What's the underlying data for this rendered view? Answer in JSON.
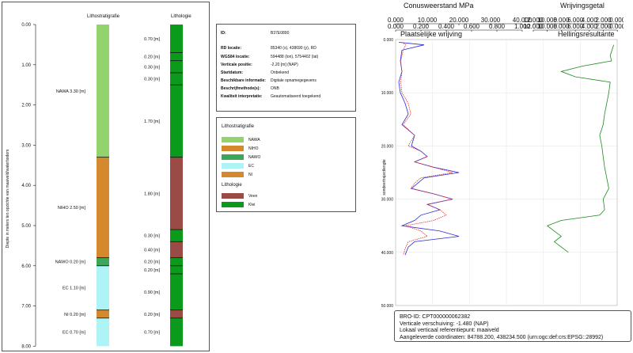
{
  "left_panel": {
    "col_litho_strat": "Lithostratigrafie",
    "col_lithologie": "Lithologie",
    "y_axis_label": "Diepte in meters ten opzichte van maaiveld/waterbodem",
    "depth_ticks": [
      "0.00",
      "1.00",
      "2.00",
      "3.00",
      "4.00",
      "5.00",
      "6.00",
      "7.00",
      "8.00"
    ],
    "strat_units": [
      {
        "label": "NAWA 3.30 [m]",
        "top": 0.0,
        "bottom": 3.3,
        "color": "#92d36e"
      },
      {
        "label": "NIHO 2.50 [m]",
        "top": 3.3,
        "bottom": 5.8,
        "color": "#d4892f"
      },
      {
        "label": "NAWO 0.20 [m]",
        "top": 5.8,
        "bottom": 6.0,
        "color": "#3da65a"
      },
      {
        "label": "EC 1.10 [m]",
        "top": 6.0,
        "bottom": 7.1,
        "color": "#aef3f5"
      },
      {
        "label": "NI 0.20 [m]",
        "top": 7.1,
        "bottom": 7.3,
        "color": "#d4892f"
      },
      {
        "label": "EC 0.70 [m]",
        "top": 7.3,
        "bottom": 8.0,
        "color": "#aef3f5"
      }
    ],
    "litho_units": [
      {
        "label": "0.70 [m]",
        "top": 0.0,
        "bottom": 0.7,
        "color": "#0c9a1d"
      },
      {
        "label": "0.20 [m]",
        "top": 0.7,
        "bottom": 0.9,
        "color": "#0c9a1d"
      },
      {
        "label": "0.30 [m]",
        "top": 0.9,
        "bottom": 1.2,
        "color": "#0c9a1d"
      },
      {
        "label": "0.30 [m]",
        "top": 1.2,
        "bottom": 1.5,
        "color": "#0c9a1d"
      },
      {
        "label": "1.70 [m]",
        "top": 1.5,
        "bottom": 3.3,
        "color": "#0c9a1d"
      },
      {
        "label": "1.80 [m]",
        "top": 3.3,
        "bottom": 5.1,
        "color": "#9a4b45"
      },
      {
        "label": "0.30 [m]",
        "top": 5.1,
        "bottom": 5.4,
        "color": "#0c9a1d"
      },
      {
        "label": "0.40 [m]",
        "top": 5.4,
        "bottom": 5.8,
        "color": "#9a4b45"
      },
      {
        "label": "0.20 [m]",
        "top": 5.8,
        "bottom": 6.0,
        "color": "#0c9a1d"
      },
      {
        "label": "0.20 [m]",
        "top": 6.0,
        "bottom": 6.2,
        "color": "#0c9a1d"
      },
      {
        "label": "0.90 [m]",
        "top": 6.2,
        "bottom": 7.1,
        "color": "#0c9a1d"
      },
      {
        "label": "0.20 [m]",
        "top": 7.1,
        "bottom": 7.3,
        "color": "#9a4b45"
      },
      {
        "label": "0.70 [m]",
        "top": 7.3,
        "bottom": 8.0,
        "color": "#0c9a1d"
      }
    ]
  },
  "info": {
    "rows": [
      {
        "key": "ID:",
        "value": "B37E0890"
      },
      {
        "key": "RD locatie:",
        "value": "85340 (x), 438690 (y), RD"
      },
      {
        "key": "WGS84 locatie:",
        "value": "594488 (lon), 5754402 (lat)"
      },
      {
        "key": "Verticale positie:",
        "value": "-2.20 [m] (NAP)"
      },
      {
        "key": "Startdatum:",
        "value": "Onbekend"
      },
      {
        "key": "Beschikbare informatie:",
        "value": "Digitale opnamegegevens"
      },
      {
        "key": "Beschrijfmethode(s):",
        "value": "ONB"
      },
      {
        "key": "Kwaliteit interpretatie:",
        "value": "Geautomatiseerd toegekend"
      }
    ]
  },
  "legend": {
    "strat_title": "Lithostratigrafie",
    "strat_items": [
      {
        "label": "NAWA",
        "color": "#92d36e"
      },
      {
        "label": "NIHO",
        "color": "#d4892f"
      },
      {
        "label": "NAWO",
        "color": "#3da65a"
      },
      {
        "label": "EC",
        "color": "#aef3f5"
      },
      {
        "label": "NI",
        "color": "#d4892f"
      }
    ],
    "litho_title": "Lithologie",
    "litho_items": [
      {
        "label": "Veen",
        "color": "#9a4b45"
      },
      {
        "label": "Klei",
        "color": "#0c9a1d"
      }
    ]
  },
  "cpt": {
    "title_cone": "Conusweerstand MPa",
    "title_friction_ratio": "Wrijvingsgetal",
    "title_sleeve": "Plaatselijke wrijving",
    "title_incl": "Hellingsresultante",
    "cone_ticks": [
      "0.000",
      "10.000",
      "20.000",
      "30.000",
      "40.000"
    ],
    "fs_ticks": [
      "0.000",
      "0.200",
      "0.400",
      "0.600",
      "0.800",
      "1.000"
    ],
    "rf_ticks": [
      "12.000",
      "10.000",
      "8.000",
      "6.000",
      "4.000",
      "2.000",
      "0.000"
    ],
    "incl_ticks": [
      "12.000",
      "10.000",
      "8.000",
      "6.000",
      "4.000",
      "2.000",
      "0.000"
    ],
    "depth_ticks": [
      "0.000",
      "10.000",
      "20.000",
      "30.000",
      "40.000",
      "50.000"
    ],
    "y_axis_label": "sondeertrajectlengte",
    "colors": {
      "cone": "#2b2bd8",
      "sleeve": "#e03030",
      "friction": "#1d8a1d"
    }
  },
  "footer": {
    "lines": [
      "BRO-ID: CPT000000062382",
      "Verticale verschuiving: -1.480 (NAP)",
      "Lokaal verticaal referentiepunt: maaiveld",
      "Aangeleverde coördinaten: 84788.200, 438234.500 (urn:ogc:def:crs:EPSG::28992)"
    ]
  },
  "chart_data": {
    "type": "line",
    "ylabel": "sondeertrajectlengte",
    "ylim": [
      0,
      50
    ],
    "series": [
      {
        "name": "Conusweerstand MPa",
        "x_range": [
          0,
          40
        ],
        "y": [
          0.5,
          1,
          2,
          4,
          6,
          8,
          10,
          12,
          14,
          16,
          18,
          20,
          21,
          22,
          23,
          24,
          25,
          26,
          27,
          28,
          29,
          30,
          31,
          32,
          33,
          34,
          35,
          36,
          37,
          38,
          39,
          40.5
        ],
        "x": [
          1,
          9,
          2,
          1.5,
          2,
          1,
          1.5,
          3,
          4,
          2,
          6,
          5,
          8,
          10,
          6,
          12,
          20,
          9,
          7,
          5,
          12,
          18,
          10,
          14,
          8,
          6,
          2,
          14,
          20,
          6,
          4,
          3
        ]
      },
      {
        "name": "Plaatselijke wrijving",
        "x_range": [
          0,
          1
        ],
        "y": [
          0.5,
          1,
          2,
          4,
          6,
          8,
          10,
          12,
          14,
          16,
          18,
          20,
          21,
          22,
          23,
          24,
          25,
          26,
          27,
          28,
          29,
          30,
          31,
          32,
          33,
          34,
          35,
          36,
          37,
          38,
          39,
          40.5
        ],
        "x": [
          0.05,
          0.08,
          0.06,
          0.04,
          0.05,
          0.04,
          0.05,
          0.1,
          0.12,
          0.06,
          0.15,
          0.1,
          0.2,
          0.25,
          0.15,
          0.3,
          0.45,
          0.2,
          0.15,
          0.12,
          0.3,
          0.45,
          0.25,
          0.35,
          0.4,
          0.3,
          0.08,
          0.2,
          0.25,
          0.1,
          0.08,
          0.06
        ]
      },
      {
        "name": "Wrijvingsgetal",
        "x_range": [
          0,
          12
        ],
        "y": [
          1,
          3,
          4,
          5,
          6,
          7,
          8,
          10,
          12,
          14,
          16,
          18,
          20,
          22,
          24,
          26,
          28,
          30,
          32,
          33,
          34,
          35,
          36,
          37,
          38,
          39,
          40
        ],
        "x": [
          0.5,
          1,
          0.8,
          5,
          8,
          6,
          1,
          1.2,
          1.5,
          1.8,
          2,
          2.5,
          2.2,
          2,
          1.8,
          1.5,
          1.2,
          2,
          1.8,
          2.5,
          8,
          10,
          9,
          8,
          9,
          8,
          7
        ]
      }
    ]
  }
}
